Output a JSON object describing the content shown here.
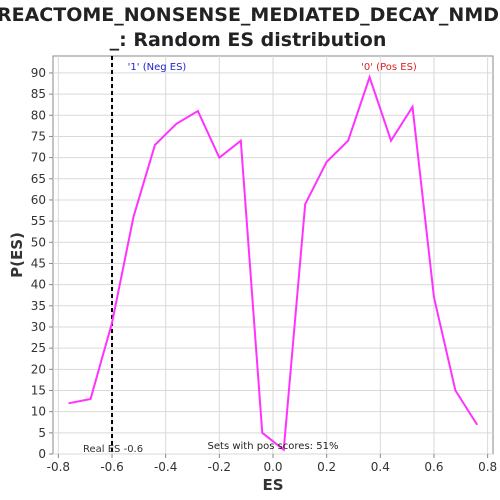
{
  "title_line1": "REACTOME_NONSENSE_MEDIATED_DECAY_NMD",
  "title_line2": "_: Random ES distribution",
  "chart_data": {
    "type": "line",
    "xlabel": "ES",
    "ylabel": "P(ES)",
    "xlim": [
      -0.82,
      0.82
    ],
    "ylim": [
      0,
      94
    ],
    "xticks": [
      -0.8,
      -0.6,
      -0.4,
      -0.2,
      0.0,
      0.2,
      0.4,
      0.6,
      0.8
    ],
    "xtick_labels": [
      "-0.8",
      "-0.6",
      "-0.4",
      "-0.2",
      "0.0",
      "0.2",
      "0.4",
      "0.6",
      "0.8"
    ],
    "yticks": [
      0,
      5,
      10,
      15,
      20,
      25,
      30,
      35,
      40,
      45,
      50,
      55,
      60,
      65,
      70,
      75,
      80,
      85,
      90
    ],
    "ytick_labels": [
      "0",
      "5",
      "10",
      "15",
      "20",
      "25",
      "30",
      "35",
      "40",
      "45",
      "50",
      "55",
      "60",
      "65",
      "70",
      "75",
      "80",
      "85",
      "90"
    ],
    "grid": true,
    "series": [
      {
        "color": "#ff33ff",
        "x": [
          -0.76,
          -0.68,
          -0.6,
          -0.52,
          -0.44,
          -0.36,
          -0.28,
          -0.2,
          -0.12,
          -0.04,
          0.04,
          0.12,
          0.2,
          0.28,
          0.36,
          0.44,
          0.52,
          0.6,
          0.68,
          0.76
        ],
        "y": [
          12,
          13,
          31,
          56,
          73,
          78,
          81,
          70,
          74,
          5,
          1,
          59,
          69,
          74,
          89,
          74,
          82,
          37,
          15,
          7
        ]
      }
    ],
    "real_es": -0.6,
    "real_es_label": "Real ES -0.6",
    "neg_label": "'1' (Neg ES)",
    "neg_color": "#2222cc",
    "pos_label": "'0' (Pos ES)",
    "pos_color": "#dd2222",
    "footer_note": "Sets with pos scores: 51%"
  }
}
